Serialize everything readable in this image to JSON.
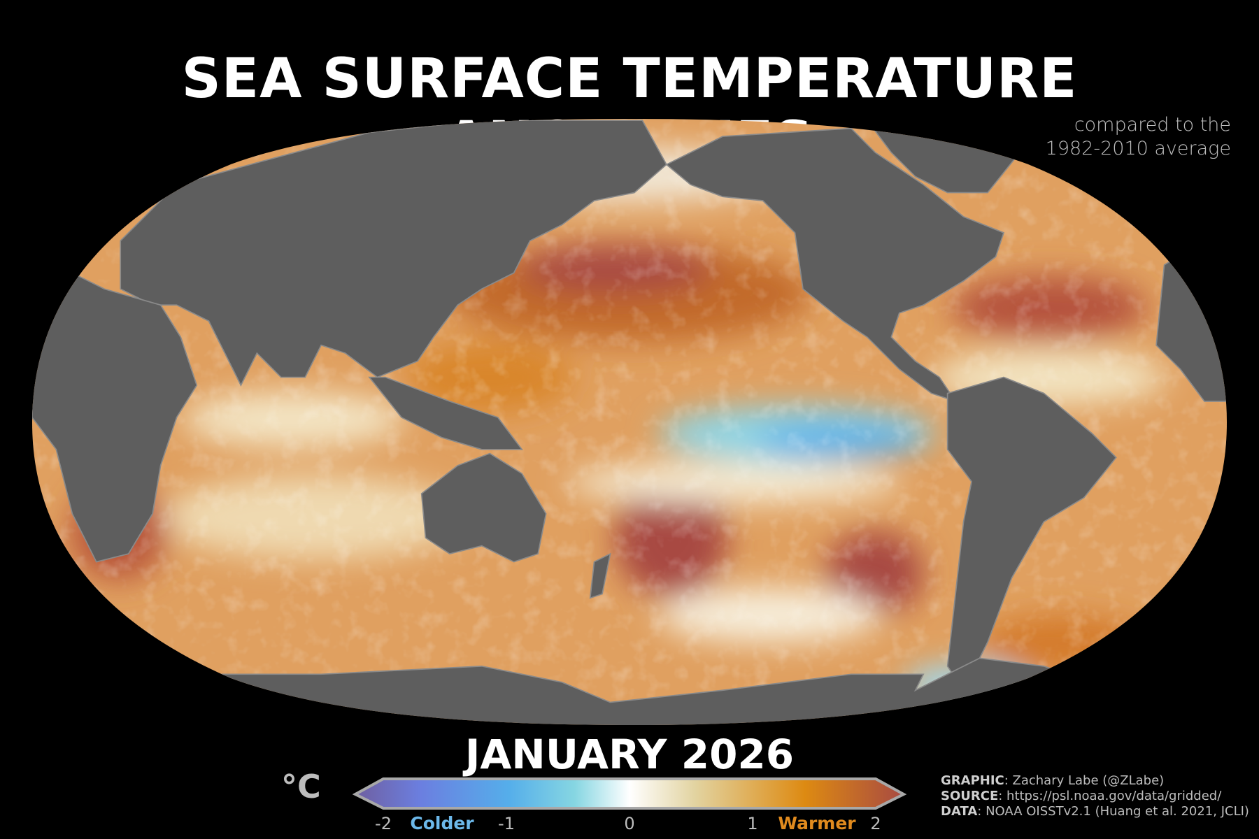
{
  "title": "SEA SURFACE TEMPERATURE ANOMALIES",
  "subtitle": [
    "compared to the",
    "1982-2010 average"
  ],
  "date": "JANUARY 2026",
  "colorbar": {
    "unit": "°C",
    "ticks": [
      "-2",
      "-1",
      "0",
      "1",
      "2"
    ],
    "range": [
      -2,
      2
    ],
    "colder_label": "Colder",
    "warmer_label": "Warmer",
    "colors": [
      "#6f5fa0",
      "#6b7fe0",
      "#55aeea",
      "#86d6e2",
      "#ffffff",
      "#e2d3a0",
      "#dd8a12",
      "#a84a42"
    ]
  },
  "credits": [
    {
      "key": "GRAPHIC",
      "value": ": Zachary Labe (@ZLabe)"
    },
    {
      "key": "SOURCE",
      "value": ": https://psl.noaa.gov/data/gridded/"
    },
    {
      "key": "DATA",
      "value": ": NOAA OISSTv2.1 (Huang et al. 2021, JCLI)"
    }
  ],
  "map": {
    "land_color": "#5e5e5e",
    "background": "#000000"
  }
}
